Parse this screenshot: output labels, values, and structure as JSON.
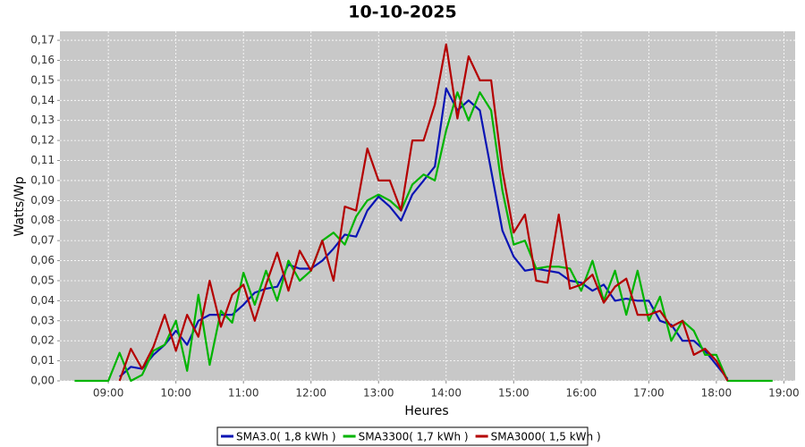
{
  "chart_data": {
    "type": "line",
    "title": "10-10-2025",
    "x_label": "Heures",
    "y_label": "Watts/Wp",
    "x": [
      510,
      520,
      530,
      540,
      550,
      560,
      570,
      580,
      590,
      600,
      610,
      620,
      630,
      640,
      650,
      660,
      670,
      680,
      690,
      700,
      710,
      720,
      730,
      740,
      750,
      760,
      770,
      780,
      790,
      800,
      810,
      820,
      830,
      840,
      850,
      860,
      870,
      880,
      890,
      900,
      910,
      920,
      930,
      940,
      950,
      960,
      970,
      980,
      990,
      1000,
      1010,
      1020,
      1030,
      1040,
      1050,
      1060,
      1070,
      1080,
      1090,
      1100,
      1110,
      1120,
      1130
    ],
    "xlim": [
      497,
      1150
    ],
    "xticks": [
      {
        "value": 540,
        "label": "09:00"
      },
      {
        "value": 600,
        "label": "10:00"
      },
      {
        "value": 660,
        "label": "11:00"
      },
      {
        "value": 720,
        "label": "12:00"
      },
      {
        "value": 780,
        "label": "13:00"
      },
      {
        "value": 840,
        "label": "14:00"
      },
      {
        "value": 900,
        "label": "15:00"
      },
      {
        "value": 960,
        "label": "16:00"
      },
      {
        "value": 1020,
        "label": "17:00"
      },
      {
        "value": 1080,
        "label": "18:00"
      },
      {
        "value": 1140,
        "label": "19:00"
      }
    ],
    "ylim": [
      0,
      0.1745
    ],
    "yticks": [
      {
        "value": 0,
        "label": "0,00"
      },
      {
        "value": 0.01,
        "label": "0,01"
      },
      {
        "value": 0.02,
        "label": "0,02"
      },
      {
        "value": 0.03,
        "label": "0,03"
      },
      {
        "value": 0.04,
        "label": "0,04"
      },
      {
        "value": 0.05,
        "label": "0,05"
      },
      {
        "value": 0.06,
        "label": "0,06"
      },
      {
        "value": 0.07,
        "label": "0,07"
      },
      {
        "value": 0.08,
        "label": "0,08"
      },
      {
        "value": 0.09,
        "label": "0,09"
      },
      {
        "value": 0.1,
        "label": "0,10"
      },
      {
        "value": 0.11,
        "label": "0,11"
      },
      {
        "value": 0.12,
        "label": "0,12"
      },
      {
        "value": 0.13,
        "label": "0,13"
      },
      {
        "value": 0.14,
        "label": "0,14"
      },
      {
        "value": 0.15,
        "label": "0,15"
      },
      {
        "value": 0.16,
        "label": "0,16"
      },
      {
        "value": 0.17,
        "label": "0,17"
      }
    ],
    "grid": true,
    "series": [
      {
        "name": "SMA3.0( 1,8 kWh )",
        "color": "#0a14b4",
        "values": [
          null,
          null,
          null,
          null,
          0.002,
          0.007,
          0.006,
          0.013,
          0.018,
          0.025,
          0.018,
          0.03,
          0.033,
          0.033,
          0.033,
          0.038,
          0.044,
          0.046,
          0.047,
          0.058,
          0.056,
          0.056,
          0.06,
          0.066,
          0.073,
          0.072,
          0.085,
          0.092,
          0.087,
          0.08,
          0.093,
          0.1,
          0.107,
          0.146,
          0.135,
          0.14,
          0.135,
          0.105,
          0.075,
          0.062,
          0.055,
          0.056,
          0.055,
          0.054,
          0.05,
          0.049,
          0.045,
          0.048,
          0.04,
          0.041,
          0.04,
          0.04,
          0.03,
          0.028,
          0.02,
          0.02,
          0.015,
          0.008,
          0.001,
          null,
          null,
          null,
          null
        ]
      },
      {
        "name": "SMA3300( 1,7 kWh )",
        "color": "#00b400",
        "values": [
          0,
          0,
          0,
          0,
          0.014,
          0,
          0.003,
          0.015,
          0.018,
          0.03,
          0.005,
          0.043,
          0.008,
          0.035,
          0.029,
          0.054,
          0.038,
          0.055,
          0.04,
          0.06,
          0.05,
          0.055,
          0.07,
          0.074,
          0.068,
          0.082,
          0.09,
          0.093,
          0.09,
          0.085,
          0.098,
          0.103,
          0.1,
          0.125,
          0.144,
          0.13,
          0.144,
          0.135,
          0.095,
          0.068,
          0.07,
          0.056,
          0.057,
          0.057,
          0.056,
          0.045,
          0.06,
          0.04,
          0.055,
          0.033,
          0.055,
          0.03,
          0.042,
          0.02,
          0.03,
          0.025,
          0.013,
          0.013,
          0,
          0,
          0,
          0,
          0
        ]
      },
      {
        "name": "SMA3000( 1,5 kWh )",
        "color": "#b40000",
        "values": [
          null,
          null,
          null,
          null,
          0,
          0.016,
          0.006,
          0.017,
          0.033,
          0.015,
          0.033,
          0.022,
          0.05,
          0.027,
          0.043,
          0.048,
          0.03,
          0.048,
          0.064,
          0.045,
          0.065,
          0.055,
          0.07,
          0.05,
          0.087,
          0.085,
          0.116,
          0.1,
          0.1,
          0.085,
          0.12,
          0.12,
          0.138,
          0.168,
          0.131,
          0.162,
          0.15,
          0.15,
          0.105,
          0.074,
          0.083,
          0.05,
          0.049,
          0.083,
          0.046,
          0.048,
          0.053,
          0.039,
          0.047,
          0.051,
          0.033,
          0.033,
          0.035,
          0.027,
          0.03,
          0.013,
          0.016,
          0.01,
          0,
          null,
          null,
          null,
          null
        ]
      }
    ]
  }
}
